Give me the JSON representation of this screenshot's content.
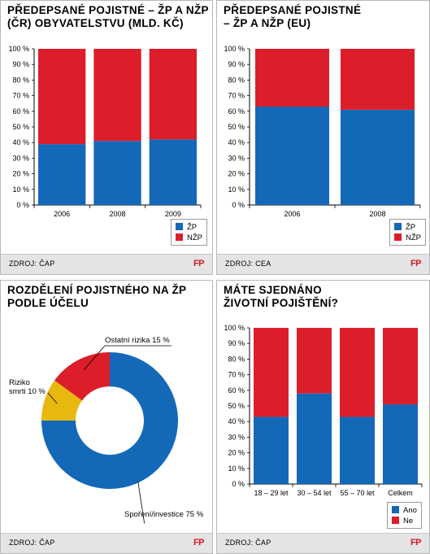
{
  "colors": {
    "blue": "#1468b8",
    "red": "#dc1e2b",
    "yellow": "#e8b80f",
    "fp": "#d51a25"
  },
  "brand": "FP",
  "panels": [
    {
      "title_lines": [
        "PŘEDEPSANÉ POJISTNÉ – ŽP A NŽP",
        "(ČR) OBYVATELSTVU (MLD. KČ)"
      ],
      "source": "ZDROJ: ČAP"
    },
    {
      "title_lines": [
        "PŘEDEPSANÉ POJISTNÉ",
        "– ŽP A NŽP (EU)"
      ],
      "source": "ZDROJ: CEA"
    },
    {
      "title_lines": [
        "ROZDĚLENÍ POJISTNÉHO NA ŽP",
        "PODLE ÚČELU"
      ],
      "source": "ZDROJ: ČAP"
    },
    {
      "title_lines": [
        "MÁTE SJEDNÁNO",
        "ŽIVOTNÍ POJIŠTĚNÍ?"
      ],
      "source": "ZDROJ: ČAP"
    }
  ],
  "chart_data": [
    {
      "type": "bar",
      "stacked": true,
      "title": "PŘEDEPSANÉ POJISTNÉ – ŽP A NŽP (ČR) OBYVATELSTVU (MLD. KČ)",
      "categories": [
        "2006",
        "2008",
        "2009"
      ],
      "series": [
        {
          "name": "ŽP",
          "values": [
            39,
            41,
            42
          ],
          "color": "#1468b8"
        },
        {
          "name": "NŽP",
          "values": [
            61,
            59,
            58
          ],
          "color": "#dc1e2b"
        }
      ],
      "ylim": [
        0,
        100
      ],
      "yticks": [
        "0 %",
        "10 %",
        "20 %",
        "30 %",
        "40 %",
        "50 %",
        "60 %",
        "70 %",
        "80 %",
        "90 %",
        "100 %"
      ],
      "legend": "bottom-right",
      "grid": false
    },
    {
      "type": "bar",
      "stacked": true,
      "title": "PŘEDEPSANÉ POJISTNÉ – ŽP A NŽP (EU)",
      "categories": [
        "2006",
        "2008"
      ],
      "series": [
        {
          "name": "ŽP",
          "values": [
            63,
            61
          ],
          "color": "#1468b8"
        },
        {
          "name": "NŽP",
          "values": [
            37,
            39
          ],
          "color": "#dc1e2b"
        }
      ],
      "ylim": [
        0,
        100
      ],
      "yticks": [
        "0 %",
        "10 %",
        "20 %",
        "30 %",
        "40 %",
        "50 %",
        "60 %",
        "70 %",
        "80 %",
        "90 %",
        "100 %"
      ],
      "legend": "bottom-right",
      "grid": false
    },
    {
      "type": "pie",
      "donut": true,
      "title": "ROZDĚLENÍ POJISTNÉHO NA ŽP PODLE ÚČELU",
      "slices": [
        {
          "label": "Spoření/investice 75 %",
          "value": 75,
          "color": "#1468b8"
        },
        {
          "label": "Riziko smrti 10 %",
          "label_lines": [
            "Riziko",
            "smrti 10 %"
          ],
          "value": 10,
          "color": "#e8b80f"
        },
        {
          "label": "Ostatní rizika 15 %",
          "value": 15,
          "color": "#dc1e2b"
        }
      ]
    },
    {
      "type": "bar",
      "stacked": true,
      "title": "MÁTE SJEDNÁNO ŽIVOTNÍ POJIŠTĚNÍ?",
      "categories": [
        "18 – 29 let",
        "30 – 54 let",
        "55 – 70 let",
        "Celkem"
      ],
      "series": [
        {
          "name": "Ano",
          "values": [
            43,
            58,
            43,
            51
          ],
          "color": "#1468b8"
        },
        {
          "name": "Ne",
          "values": [
            57,
            42,
            57,
            49
          ],
          "color": "#dc1e2b"
        }
      ],
      "ylim": [
        0,
        100
      ],
      "yticks": [
        "0 %",
        "10 %",
        "20 %",
        "30 %",
        "40 %",
        "50 %",
        "60 %",
        "70 %",
        "80 %",
        "90 %",
        "100 %"
      ],
      "legend": "bottom-right",
      "grid": false
    }
  ]
}
